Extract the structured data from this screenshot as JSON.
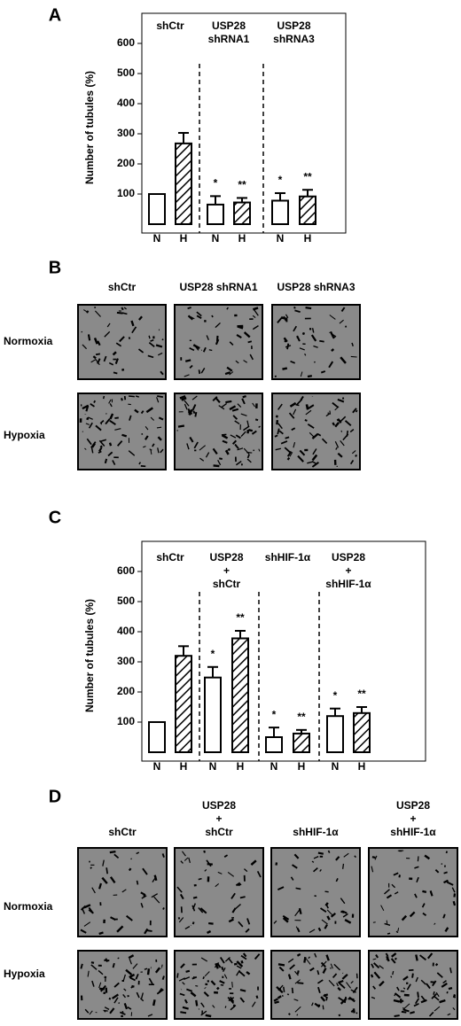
{
  "chart_data": [
    {
      "type": "bar",
      "panel": "A",
      "ylabel": "Number of tubules (%)",
      "groups": [
        [
          "shCtr"
        ],
        [
          "USP28",
          "shRNA1"
        ],
        [
          "USP28",
          "shRNA3"
        ]
      ],
      "categories": [
        "N",
        "H",
        "N",
        "H",
        "N",
        "H"
      ],
      "values": [
        100,
        268,
        65,
        72,
        78,
        92
      ],
      "errors": [
        null,
        35,
        28,
        15,
        25,
        22
      ],
      "annotations": [
        null,
        null,
        "*",
        "**",
        "*",
        "**"
      ],
      "ylim": [
        0,
        700
      ],
      "yticks": [
        100,
        200,
        300,
        400,
        500,
        600
      ]
    },
    {
      "type": "bar",
      "panel": "C",
      "ylabel": "Number of tubules (%)",
      "groups": [
        [
          "shCtr"
        ],
        [
          "USP28",
          "+",
          "shCtr"
        ],
        [
          "shHIF-1α"
        ],
        [
          "USP28",
          "+",
          "shHIF-1α"
        ]
      ],
      "categories": [
        "N",
        "H",
        "N",
        "H",
        "N",
        "H",
        "N",
        "H"
      ],
      "values": [
        100,
        320,
        248,
        378,
        50,
        62,
        120,
        130
      ],
      "errors": [
        null,
        32,
        35,
        25,
        32,
        12,
        25,
        20
      ],
      "annotations": [
        null,
        null,
        "*",
        "**",
        "*",
        "**",
        "*",
        "**"
      ],
      "ylim": [
        0,
        700
      ],
      "yticks": [
        100,
        200,
        300,
        400,
        500,
        600
      ]
    }
  ],
  "image_panels": [
    {
      "panel": "B",
      "columns": [
        [
          "shCtr"
        ],
        [
          "USP28 shRNA1"
        ],
        [
          "USP28 shRNA3"
        ]
      ],
      "rows": [
        "Normoxia",
        "Hypoxia"
      ]
    },
    {
      "panel": "D",
      "columns": [
        [
          "shCtr"
        ],
        [
          "USP28",
          "+",
          "shCtr"
        ],
        [
          "shHIF-1α"
        ],
        [
          "USP28",
          "+",
          "shHIF-1α"
        ]
      ],
      "rows": [
        "Normoxia",
        "Hypoxia"
      ]
    }
  ]
}
